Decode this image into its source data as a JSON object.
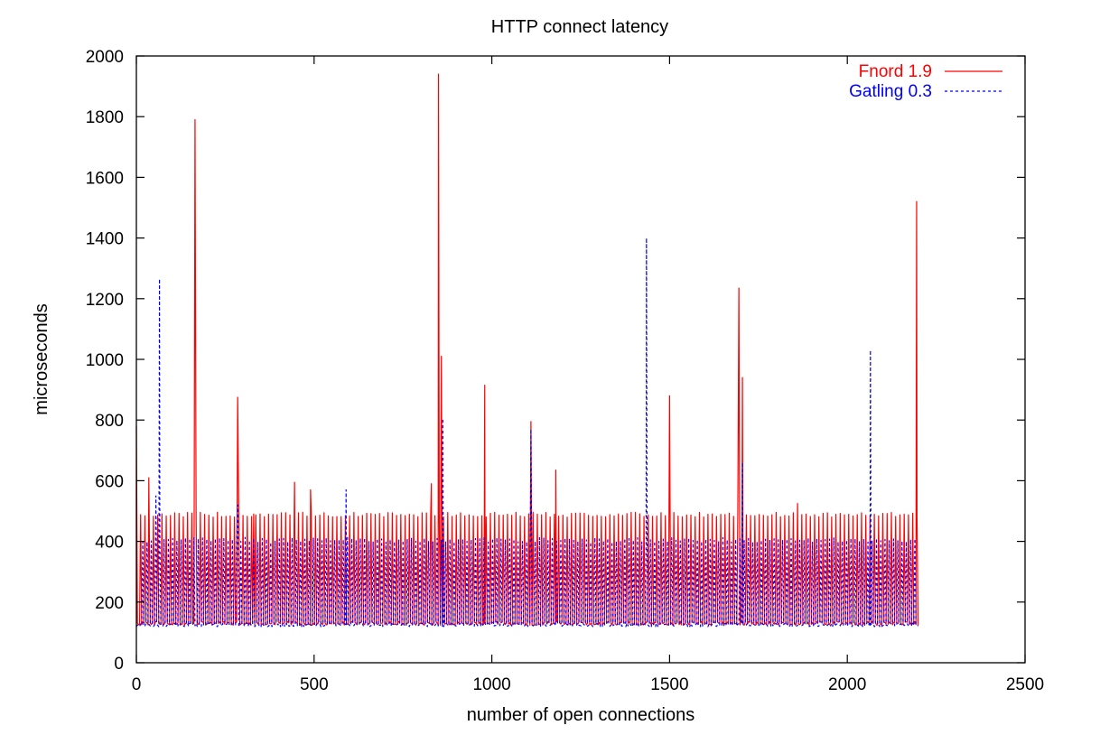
{
  "chart_data": {
    "type": "line",
    "title": "HTTP connect latency",
    "xlabel": "number of open connections",
    "ylabel": "microseconds",
    "xlim": [
      0,
      2500
    ],
    "ylim": [
      0,
      2000
    ],
    "xticks": [
      0,
      500,
      1000,
      1500,
      2000,
      2500
    ],
    "yticks": [
      0,
      200,
      400,
      600,
      800,
      1000,
      1200,
      1400,
      1600,
      1800,
      2000
    ],
    "grid": false,
    "legend_position": "top-right",
    "series": [
      {
        "name": "Fnord 1.9",
        "color": "#ff0000",
        "style": "solid",
        "baseline": 130,
        "x_end": 2200,
        "comb_period": 12,
        "comb_value": 488,
        "spikes": [
          [
            0,
            780
          ],
          [
            35,
            610
          ],
          [
            165,
            1790
          ],
          [
            285,
            875
          ],
          [
            330,
            490
          ],
          [
            445,
            595
          ],
          [
            490,
            570
          ],
          [
            830,
            590
          ],
          [
            850,
            1940
          ],
          [
            858,
            1010
          ],
          [
            980,
            915
          ],
          [
            1110,
            795
          ],
          [
            1180,
            635
          ],
          [
            1500,
            880
          ],
          [
            1695,
            1235
          ],
          [
            1705,
            940
          ],
          [
            1860,
            525
          ],
          [
            2195,
            1520
          ]
        ]
      },
      {
        "name": "Gatling 0.3",
        "color": "#0000ff",
        "style": "dashed",
        "baseline": 125,
        "x_end": 2200,
        "comb_period": 12,
        "comb_value": 405,
        "spikes": [
          [
            55,
            550
          ],
          [
            65,
            1265
          ],
          [
            285,
            520
          ],
          [
            590,
            570
          ],
          [
            862,
            805
          ],
          [
            1110,
            770
          ],
          [
            1435,
            1400
          ],
          [
            1705,
            660
          ],
          [
            2065,
            1030
          ]
        ]
      }
    ]
  }
}
